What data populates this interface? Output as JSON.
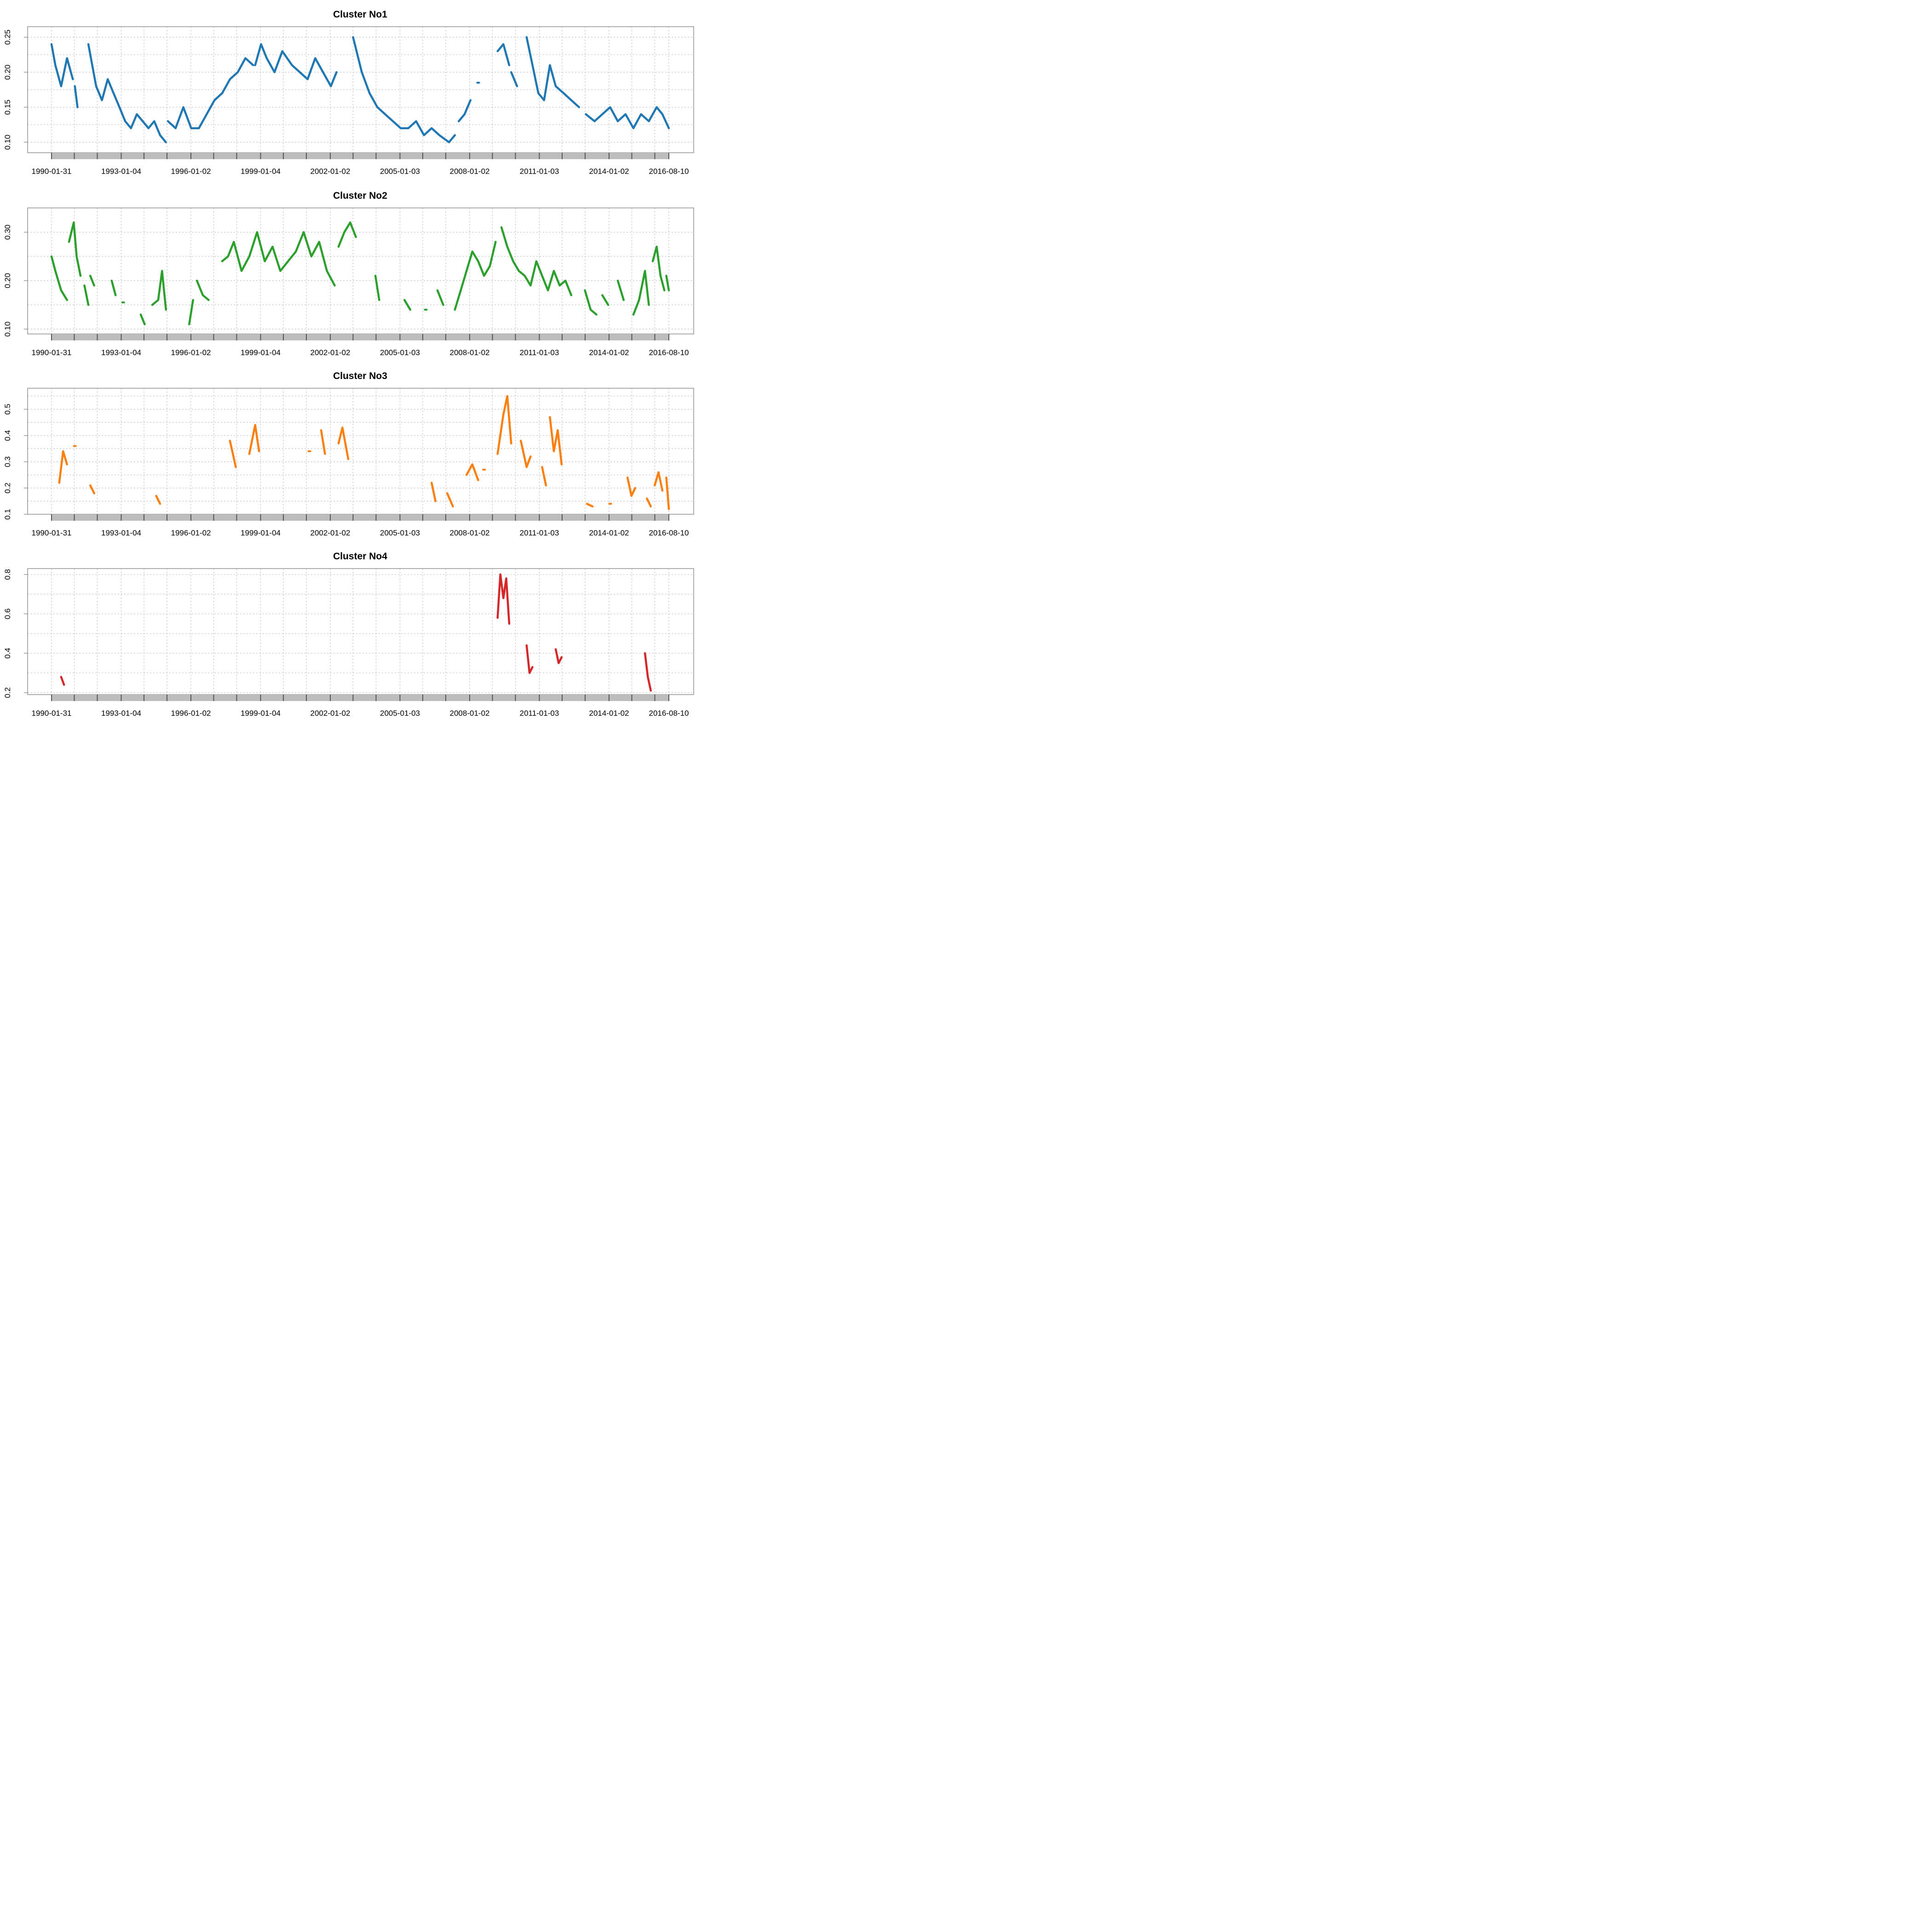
{
  "chart_data": [
    {
      "type": "line",
      "title": "Cluster No1",
      "color": "#1f77b4",
      "xlim": [
        "1990-01-31",
        "2016-08-10"
      ],
      "ylim": [
        0.085,
        0.265
      ],
      "yticks": [
        0.1,
        0.15,
        0.2,
        0.25
      ],
      "ytick_labels": [
        "0.10",
        "0.15",
        "0.20",
        "0.25"
      ],
      "xtick_labels": [
        "1990-01-31",
        "1993-01-04",
        "1996-01-02",
        "1999-01-04",
        "2002-01-02",
        "2005-01-03",
        "2008-01-02",
        "2011-01-03",
        "2014-01-02",
        "2016-08-10"
      ],
      "segments": [
        {
          "x": [
            "1990-01-31",
            "1990-04-01",
            "1990-07-01",
            "1990-10-01",
            "1990-12-31"
          ],
          "y": [
            0.24,
            0.21,
            0.18,
            0.22,
            0.19
          ]
        },
        {
          "x": [
            "1991-02-01",
            "1991-03-15"
          ],
          "y": [
            0.18,
            0.15
          ]
        },
        {
          "x": [
            "1991-09-01",
            "1991-11-01",
            "1992-01-01",
            "1992-04-01",
            "1992-07-01",
            "1992-10-01",
            "1993-01-01",
            "1993-04-01",
            "1993-07-01",
            "1993-10-01",
            "1994-01-01",
            "1994-04-01",
            "1994-07-01",
            "1994-10-01",
            "1994-12-31"
          ],
          "y": [
            0.24,
            0.21,
            0.18,
            0.16,
            0.19,
            0.17,
            0.15,
            0.13,
            0.12,
            0.14,
            0.13,
            0.12,
            0.13,
            0.11,
            0.1
          ]
        },
        {
          "x": [
            "1995-02-01",
            "1995-06-01",
            "1995-10-01",
            "1996-02-01",
            "1996-06-01",
            "1996-10-01",
            "1997-02-01",
            "1997-06-01",
            "1997-10-01",
            "1998-02-01",
            "1998-06-01",
            "1998-09-30"
          ],
          "y": [
            0.13,
            0.12,
            0.15,
            0.12,
            0.12,
            0.14,
            0.16,
            0.17,
            0.19,
            0.2,
            0.22,
            0.21
          ]
        },
        {
          "x": [
            "1998-11-01",
            "1999-02-01",
            "1999-05-01",
            "1999-09-01",
            "2000-01-01",
            "2000-06-01",
            "2000-10-01",
            "2001-02-01",
            "2001-06-01",
            "2001-10-01",
            "2002-02-01",
            "2002-05-01"
          ],
          "y": [
            0.21,
            0.24,
            0.22,
            0.2,
            0.23,
            0.21,
            0.2,
            0.19,
            0.22,
            0.2,
            0.18,
            0.2
          ]
        },
        {
          "x": [
            "2003-01-15",
            "2003-06-01",
            "2003-10-01",
            "2004-02-01",
            "2004-06-01",
            "2004-10-01",
            "2005-02-01",
            "2005-06-01",
            "2005-10-01",
            "2006-02-01",
            "2006-06-01",
            "2006-10-01",
            "2007-03-01",
            "2007-06-01"
          ],
          "y": [
            0.25,
            0.2,
            0.17,
            0.15,
            0.14,
            0.13,
            0.12,
            0.12,
            0.13,
            0.11,
            0.12,
            0.11,
            0.1,
            0.11
          ]
        },
        {
          "x": [
            "2007-08-01",
            "2007-11-01",
            "2008-02-01"
          ],
          "y": [
            0.13,
            0.14,
            0.16
          ]
        },
        {
          "x": [
            "2008-06-01"
          ],
          "y": [
            0.185
          ]
        },
        {
          "x": [
            "2009-04-01",
            "2009-07-01",
            "2009-10-01"
          ],
          "y": [
            0.23,
            0.24,
            0.21
          ]
        },
        {
          "x": [
            "2009-11-01",
            "2010-02-01"
          ],
          "y": [
            0.2,
            0.18
          ]
        },
        {
          "x": [
            "2010-07-01",
            "2010-10-01",
            "2011-01-01",
            "2011-04-01",
            "2011-07-01",
            "2011-10-01",
            "2012-02-01",
            "2012-06-01",
            "2012-10-01"
          ],
          "y": [
            0.25,
            0.21,
            0.17,
            0.16,
            0.21,
            0.18,
            0.17,
            0.16,
            0.15
          ]
        },
        {
          "x": [
            "2013-01-15",
            "2013-06-01",
            "2013-10-01",
            "2014-02-01",
            "2014-06-01",
            "2014-10-01",
            "2015-02-01",
            "2015-06-01",
            "2015-10-01",
            "2016-02-01",
            "2016-05-01",
            "2016-08-10"
          ],
          "y": [
            0.14,
            0.13,
            0.14,
            0.15,
            0.13,
            0.14,
            0.12,
            0.14,
            0.13,
            0.15,
            0.14,
            0.12
          ]
        }
      ]
    },
    {
      "type": "line",
      "title": "Cluster No2",
      "color": "#2ca02c",
      "xlim": [
        "1990-01-31",
        "2016-08-10"
      ],
      "ylim": [
        0.09,
        0.35
      ],
      "yticks": [
        0.1,
        0.2,
        0.3
      ],
      "ytick_labels": [
        "0.10",
        "0.20",
        "0.30"
      ],
      "xtick_labels": [
        "1990-01-31",
        "1993-01-04",
        "1996-01-02",
        "1999-01-04",
        "2002-01-02",
        "2005-01-03",
        "2008-01-02",
        "2011-01-03",
        "2014-01-02",
        "2016-08-10"
      ],
      "segments": [
        {
          "x": [
            "1990-01-31",
            "1990-04-01",
            "1990-07-01",
            "1990-10-01"
          ],
          "y": [
            0.25,
            0.22,
            0.18,
            0.16
          ]
        },
        {
          "x": [
            "1990-11-01",
            "1991-01-15",
            "1991-03-01",
            "1991-05-01"
          ],
          "y": [
            0.28,
            0.32,
            0.25,
            0.21
          ]
        },
        {
          "x": [
            "1991-07-01",
            "1991-09-01"
          ],
          "y": [
            0.19,
            0.15
          ]
        },
        {
          "x": [
            "1991-10-01",
            "1991-12-01"
          ],
          "y": [
            0.21,
            0.19
          ]
        },
        {
          "x": [
            "1992-09-01",
            "1992-11-01"
          ],
          "y": [
            0.2,
            0.17
          ]
        },
        {
          "x": [
            "1993-03-01"
          ],
          "y": [
            0.155
          ]
        },
        {
          "x": [
            "1993-12-01",
            "1994-02-01"
          ],
          "y": [
            0.13,
            0.11
          ]
        },
        {
          "x": [
            "1994-06-01",
            "1994-09-01",
            "1994-11-01",
            "1995-01-01"
          ],
          "y": [
            0.15,
            0.16,
            0.22,
            0.14
          ]
        },
        {
          "x": [
            "1996-01-01",
            "1996-03-01"
          ],
          "y": [
            0.11,
            0.16
          ]
        },
        {
          "x": [
            "1996-05-01",
            "1996-08-01",
            "1996-11-01"
          ],
          "y": [
            0.2,
            0.17,
            0.16
          ]
        },
        {
          "x": [
            "1997-06-01",
            "1997-09-01",
            "1997-12-01",
            "1998-04-01",
            "1998-08-01",
            "1998-12-01",
            "1999-04-01",
            "1999-08-01",
            "1999-12-01",
            "2000-04-01",
            "2000-08-01",
            "2000-12-01",
            "2001-04-01",
            "2001-08-01",
            "2001-12-01",
            "2002-04-01"
          ],
          "y": [
            0.24,
            0.25,
            0.28,
            0.22,
            0.25,
            0.3,
            0.24,
            0.27,
            0.22,
            0.24,
            0.26,
            0.3,
            0.25,
            0.28,
            0.22,
            0.19
          ]
        },
        {
          "x": [
            "2002-06-01",
            "2002-09-01",
            "2002-12-01",
            "2003-03-01"
          ],
          "y": [
            0.27,
            0.3,
            0.32,
            0.29
          ]
        },
        {
          "x": [
            "2004-01-01",
            "2004-03-01"
          ],
          "y": [
            0.21,
            0.16
          ]
        },
        {
          "x": [
            "2005-04-01",
            "2005-07-01"
          ],
          "y": [
            0.16,
            0.14
          ]
        },
        {
          "x": [
            "2006-03-01"
          ],
          "y": [
            0.14
          ]
        },
        {
          "x": [
            "2006-09-01",
            "2006-12-01"
          ],
          "y": [
            0.18,
            0.15
          ]
        },
        {
          "x": [
            "2007-06-01",
            "2007-09-01",
            "2007-12-01",
            "2008-03-01",
            "2008-06-01",
            "2008-09-01",
            "2008-12-01",
            "2009-03-01"
          ],
          "y": [
            0.14,
            0.18,
            0.22,
            0.26,
            0.24,
            0.21,
            0.23,
            0.28
          ]
        },
        {
          "x": [
            "2009-06-01",
            "2009-09-01",
            "2009-12-01",
            "2010-03-01",
            "2010-06-01",
            "2010-09-01",
            "2010-12-01",
            "2011-03-01",
            "2011-06-01",
            "2011-09-01",
            "2011-12-01",
            "2012-03-01",
            "2012-06-01"
          ],
          "y": [
            0.31,
            0.27,
            0.24,
            0.22,
            0.21,
            0.19,
            0.24,
            0.21,
            0.18,
            0.22,
            0.19,
            0.2,
            0.17
          ]
        },
        {
          "x": [
            "2013-01-01",
            "2013-04-01",
            "2013-07-01"
          ],
          "y": [
            0.18,
            0.14,
            0.13
          ]
        },
        {
          "x": [
            "2013-10-01",
            "2014-01-01"
          ],
          "y": [
            0.17,
            0.15
          ]
        },
        {
          "x": [
            "2014-06-01",
            "2014-09-01"
          ],
          "y": [
            0.2,
            0.16
          ]
        },
        {
          "x": [
            "2015-02-01",
            "2015-05-01",
            "2015-08-01",
            "2015-10-01"
          ],
          "y": [
            0.13,
            0.16,
            0.22,
            0.15
          ]
        },
        {
          "x": [
            "2015-12-01",
            "2016-02-01",
            "2016-04-01",
            "2016-06-01"
          ],
          "y": [
            0.24,
            0.27,
            0.21,
            0.18
          ]
        },
        {
          "x": [
            "2016-07-01",
            "2016-08-10"
          ],
          "y": [
            0.21,
            0.18
          ]
        }
      ]
    },
    {
      "type": "line",
      "title": "Cluster No3",
      "color": "#ff7f0e",
      "xlim": [
        "1990-01-31",
        "2016-08-10"
      ],
      "ylim": [
        0.1,
        0.58
      ],
      "yticks": [
        0.1,
        0.2,
        0.3,
        0.4,
        0.5
      ],
      "ytick_labels": [
        "0.1",
        "0.2",
        "0.3",
        "0.4",
        "0.5"
      ],
      "xtick_labels": [
        "1990-01-31",
        "1993-01-04",
        "1996-01-02",
        "1999-01-04",
        "2002-01-02",
        "2005-01-03",
        "2008-01-02",
        "2011-01-03",
        "2014-01-02",
        "2016-08-10"
      ],
      "segments": [
        {
          "x": [
            "1990-06-01",
            "1990-08-01",
            "1990-10-01"
          ],
          "y": [
            0.22,
            0.34,
            0.29
          ]
        },
        {
          "x": [
            "1991-02-01"
          ],
          "y": [
            0.36
          ]
        },
        {
          "x": [
            "1991-10-01",
            "1991-12-01"
          ],
          "y": [
            0.21,
            0.18
          ]
        },
        {
          "x": [
            "1994-08-01",
            "1994-10-01"
          ],
          "y": [
            0.17,
            0.14
          ]
        },
        {
          "x": [
            "1997-10-01",
            "1998-01-01"
          ],
          "y": [
            0.38,
            0.28
          ]
        },
        {
          "x": [
            "1998-08-01",
            "1998-11-01",
            "1999-01-01"
          ],
          "y": [
            0.33,
            0.44,
            0.34
          ]
        },
        {
          "x": [
            "2001-03-01"
          ],
          "y": [
            0.34
          ]
        },
        {
          "x": [
            "2001-09-01",
            "2001-11-01"
          ],
          "y": [
            0.42,
            0.33
          ]
        },
        {
          "x": [
            "2002-06-01",
            "2002-08-01",
            "2002-11-01"
          ],
          "y": [
            0.37,
            0.43,
            0.31
          ]
        },
        {
          "x": [
            "2006-06-01",
            "2006-08-01"
          ],
          "y": [
            0.22,
            0.15
          ]
        },
        {
          "x": [
            "2007-02-01",
            "2007-05-01"
          ],
          "y": [
            0.18,
            0.13
          ]
        },
        {
          "x": [
            "2007-12-01",
            "2008-03-01",
            "2008-06-01"
          ],
          "y": [
            0.25,
            0.29,
            0.23
          ]
        },
        {
          "x": [
            "2008-09-01"
          ],
          "y": [
            0.27
          ]
        },
        {
          "x": [
            "2009-04-01",
            "2009-07-01",
            "2009-09-01",
            "2009-11-01"
          ],
          "y": [
            0.33,
            0.48,
            0.55,
            0.37
          ]
        },
        {
          "x": [
            "2010-04-01",
            "2010-07-01",
            "2010-09-01"
          ],
          "y": [
            0.38,
            0.28,
            0.32
          ]
        },
        {
          "x": [
            "2011-03-01",
            "2011-05-01"
          ],
          "y": [
            0.28,
            0.21
          ]
        },
        {
          "x": [
            "2011-07-01",
            "2011-09-01",
            "2011-11-01",
            "2012-01-01"
          ],
          "y": [
            0.47,
            0.34,
            0.42,
            0.29
          ]
        },
        {
          "x": [
            "2013-02-01",
            "2013-05-01"
          ],
          "y": [
            0.14,
            0.13
          ]
        },
        {
          "x": [
            "2014-02-01"
          ],
          "y": [
            0.14
          ]
        },
        {
          "x": [
            "2014-11-01",
            "2015-01-01",
            "2015-03-01"
          ],
          "y": [
            0.24,
            0.17,
            0.2
          ]
        },
        {
          "x": [
            "2015-09-01",
            "2015-11-01"
          ],
          "y": [
            0.16,
            0.13
          ]
        },
        {
          "x": [
            "2016-01-01",
            "2016-03-01",
            "2016-05-01"
          ],
          "y": [
            0.21,
            0.26,
            0.19
          ]
        },
        {
          "x": [
            "2016-07-01",
            "2016-08-10"
          ],
          "y": [
            0.24,
            0.12
          ]
        }
      ]
    },
    {
      "type": "line",
      "title": "Cluster No4",
      "color": "#d62728",
      "xlim": [
        "1990-01-31",
        "2016-08-10"
      ],
      "ylim": [
        0.19,
        0.83
      ],
      "yticks": [
        0.2,
        0.4,
        0.6,
        0.8
      ],
      "ytick_labels": [
        "0.2",
        "0.4",
        "0.6",
        "0.8"
      ],
      "xtick_labels": [
        "1990-01-31",
        "1993-01-04",
        "1996-01-02",
        "1999-01-04",
        "2002-01-02",
        "2005-01-03",
        "2008-01-02",
        "2011-01-03",
        "2014-01-02",
        "2016-08-10"
      ],
      "segments": [
        {
          "x": [
            "1990-07-01",
            "1990-08-15"
          ],
          "y": [
            0.28,
            0.24
          ]
        },
        {
          "x": [
            "2009-04-01",
            "2009-05-15",
            "2009-07-01",
            "2009-08-15",
            "2009-10-01"
          ],
          "y": [
            0.58,
            0.8,
            0.68,
            0.78,
            0.55
          ]
        },
        {
          "x": [
            "2010-07-01",
            "2010-08-15",
            "2010-10-01"
          ],
          "y": [
            0.44,
            0.3,
            0.33
          ]
        },
        {
          "x": [
            "2011-10-01",
            "2011-11-15",
            "2012-01-01"
          ],
          "y": [
            0.42,
            0.35,
            0.38
          ]
        },
        {
          "x": [
            "2015-08-01",
            "2015-09-15",
            "2015-11-01"
          ],
          "y": [
            0.4,
            0.28,
            0.21
          ]
        }
      ]
    }
  ]
}
